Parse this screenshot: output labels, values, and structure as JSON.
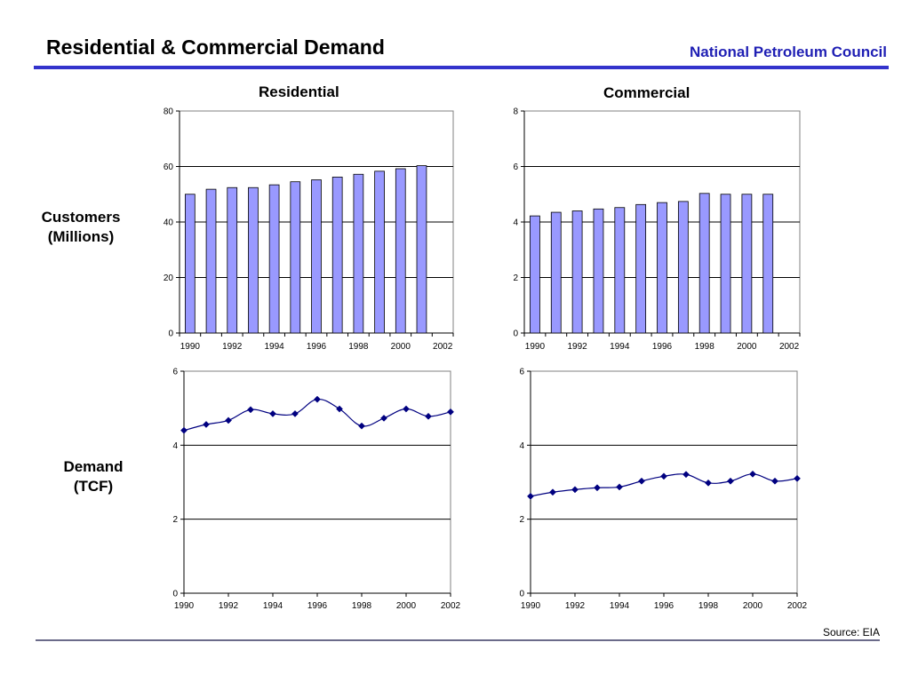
{
  "header": {
    "title": "Residential & Commercial Demand",
    "organization": "National Petroleum Council"
  },
  "column_headers": [
    "Residential",
    "Commercial"
  ],
  "row_labels": [
    {
      "line1": "Customers",
      "line2": "(Millions)"
    },
    {
      "line1": "Demand",
      "line2": "(TCF)"
    }
  ],
  "footer": {
    "source": "Source: EIA"
  },
  "colors": {
    "bar_fill": "#9999ff",
    "bar_stroke": "#000000",
    "line": "#000080",
    "marker": "#000080",
    "title_accent": "#3333cc"
  },
  "chart_data": [
    {
      "id": "res-customers",
      "type": "bar",
      "title": "Residential",
      "xlabel": "",
      "ylabel": "Customers (Millions)",
      "categories": [
        1990,
        1991,
        1992,
        1993,
        1994,
        1995,
        1996,
        1997,
        1998,
        1999,
        2000,
        2001
      ],
      "values": [
        50.0,
        51.8,
        52.4,
        52.4,
        53.4,
        54.5,
        55.2,
        56.2,
        57.2,
        58.3,
        59.2,
        60.3
      ],
      "x_ticks": [
        "1990",
        "1992",
        "1994",
        "1996",
        "1998",
        "2000",
        "2002"
      ],
      "ylim": [
        0,
        80
      ],
      "y_ticks": [
        0,
        20,
        40,
        60,
        80
      ],
      "grid": true
    },
    {
      "id": "com-customers",
      "type": "bar",
      "title": "Commercial",
      "xlabel": "",
      "ylabel": "Customers (Millions)",
      "categories": [
        1990,
        1991,
        1992,
        1993,
        1994,
        1995,
        1996,
        1997,
        1998,
        1999,
        2000,
        2001
      ],
      "values": [
        4.22,
        4.35,
        4.4,
        4.47,
        4.52,
        4.63,
        4.7,
        4.74,
        5.03,
        5.0,
        5.0,
        5.0
      ],
      "x_ticks": [
        "1990",
        "1992",
        "1994",
        "1996",
        "1998",
        "2000",
        "2002"
      ],
      "ylim": [
        0,
        8
      ],
      "y_ticks": [
        0,
        2,
        4,
        6,
        8
      ],
      "grid": true
    },
    {
      "id": "res-demand",
      "type": "line",
      "title": "Residential",
      "xlabel": "",
      "ylabel": "Demand (TCF)",
      "x": [
        1990,
        1991,
        1992,
        1993,
        1994,
        1995,
        1996,
        1997,
        1998,
        1999,
        2000,
        2001,
        2002
      ],
      "values": [
        4.4,
        4.56,
        4.67,
        4.96,
        4.85,
        4.85,
        5.24,
        4.98,
        4.52,
        4.73,
        4.98,
        4.78,
        4.9
      ],
      "x_ticks": [
        "1990",
        "1992",
        "1994",
        "1996",
        "1998",
        "2000",
        "2002"
      ],
      "ylim": [
        0,
        6
      ],
      "y_ticks": [
        0,
        2,
        4,
        6
      ],
      "grid": true
    },
    {
      "id": "com-demand",
      "type": "line",
      "title": "Commercial",
      "xlabel": "",
      "ylabel": "Demand (TCF)",
      "x": [
        1990,
        1991,
        1992,
        1993,
        1994,
        1995,
        1996,
        1997,
        1998,
        1999,
        2000,
        2001,
        2002
      ],
      "values": [
        2.62,
        2.73,
        2.8,
        2.85,
        2.87,
        3.03,
        3.16,
        3.21,
        2.98,
        3.03,
        3.22,
        3.03,
        3.1
      ],
      "x_ticks": [
        "1990",
        "1992",
        "1994",
        "1996",
        "1998",
        "2000",
        "2002"
      ],
      "ylim": [
        0,
        6
      ],
      "y_ticks": [
        0,
        2,
        4,
        6
      ],
      "grid": true
    }
  ]
}
